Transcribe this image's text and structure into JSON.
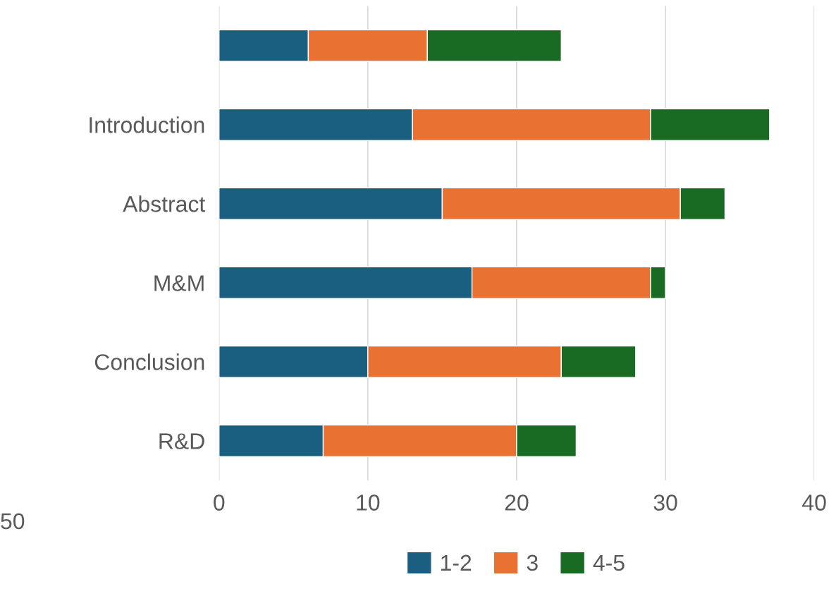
{
  "chart_data": {
    "type": "bar",
    "orientation": "horizontal",
    "stacked": true,
    "categories": [
      null,
      "Introduction",
      "Abstract",
      "M&M",
      "Conclusion",
      "R&D"
    ],
    "series": [
      {
        "name": "1-2",
        "color": "#1a5f80",
        "values": [
          6,
          13,
          15,
          17,
          10,
          7
        ]
      },
      {
        "name": "3",
        "color": "#e97132",
        "values": [
          8,
          16,
          16,
          12,
          13,
          13
        ]
      },
      {
        "name": "4-5",
        "color": "#196b24",
        "values": [
          9,
          8,
          3,
          1,
          5,
          4
        ]
      }
    ],
    "xlim": [
      0,
      40
    ],
    "xticks": [
      0,
      10,
      20,
      30,
      40
    ],
    "grid": "x",
    "legend": "bottom",
    "annotations": [
      "50"
    ]
  }
}
